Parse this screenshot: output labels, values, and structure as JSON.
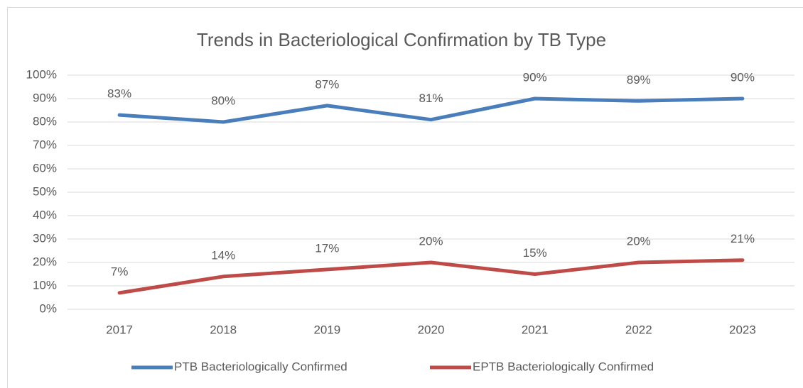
{
  "chart_data": {
    "type": "line",
    "title": "Trends in Bacteriological Confirmation by TB Type",
    "categories": [
      "2017",
      "2018",
      "2019",
      "2020",
      "2021",
      "2022",
      "2023"
    ],
    "series": [
      {
        "name": "PTB Bacteriologically Confirmed",
        "color": "#4a7ebb",
        "values": [
          83,
          80,
          87,
          81,
          90,
          89,
          90
        ],
        "value_labels": [
          "83%",
          "80%",
          "87%",
          "81%",
          "90%",
          "89%",
          "90%"
        ]
      },
      {
        "name": "EPTB Bacteriologically Confirmed",
        "color": "#be4b48",
        "values": [
          7,
          14,
          17,
          20,
          15,
          20,
          21
        ],
        "value_labels": [
          "7%",
          "14%",
          "17%",
          "20%",
          "15%",
          "20%",
          "21%"
        ]
      }
    ],
    "ylim": [
      0,
      100
    ],
    "yticks": [
      {
        "value": 0,
        "label": "0%"
      },
      {
        "value": 10,
        "label": "10%"
      },
      {
        "value": 20,
        "label": "20%"
      },
      {
        "value": 30,
        "label": "30%"
      },
      {
        "value": 40,
        "label": "40%"
      },
      {
        "value": 50,
        "label": "50%"
      },
      {
        "value": 60,
        "label": "60%"
      },
      {
        "value": 70,
        "label": "70%"
      },
      {
        "value": 80,
        "label": "80%"
      },
      {
        "value": 90,
        "label": "90%"
      },
      {
        "value": 100,
        "label": "100%"
      }
    ],
    "grid": true,
    "legend": "bottom"
  }
}
